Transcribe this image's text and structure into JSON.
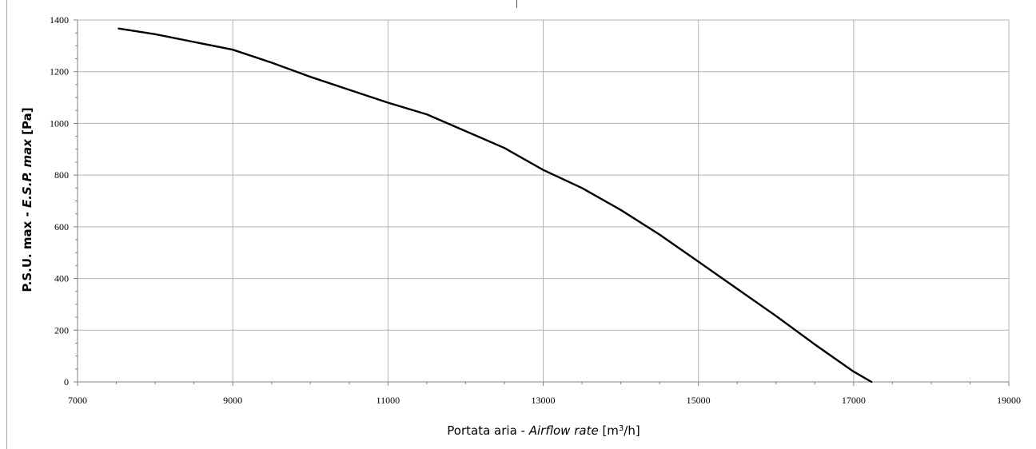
{
  "chart_data": {
    "type": "line",
    "title": "",
    "xlabel_main": "Portata aria - ",
    "xlabel_italic": "Airflow rate",
    "xlabel_unit_pre": " [m",
    "xlabel_unit_sup": "3",
    "xlabel_unit_post": "/h]",
    "ylabel_main": "P.S.U. max - ",
    "ylabel_italic": "E.S.P. max",
    "ylabel_unit": " [Pa]",
    "xlim": [
      7000,
      19000
    ],
    "ylim": [
      0,
      1400
    ],
    "x_ticks": [
      "7000",
      "9000",
      "11000",
      "13000",
      "15000",
      "17000",
      "19000"
    ],
    "y_ticks": [
      "0",
      "200",
      "400",
      "600",
      "800",
      "1000",
      "1200",
      "1400"
    ],
    "grid": true,
    "series": [
      {
        "color": "#000000",
        "x": [
          7530,
          8000,
          8500,
          9000,
          9500,
          10000,
          10500,
          11000,
          11500,
          12000,
          12500,
          13000,
          13500,
          14000,
          14500,
          15000,
          15500,
          16000,
          16500,
          17000,
          17230
        ],
        "y": [
          1367,
          1345,
          1315,
          1285,
          1235,
          1180,
          1130,
          1080,
          1035,
          970,
          905,
          820,
          750,
          665,
          570,
          465,
          360,
          255,
          145,
          40,
          0
        ]
      }
    ]
  }
}
